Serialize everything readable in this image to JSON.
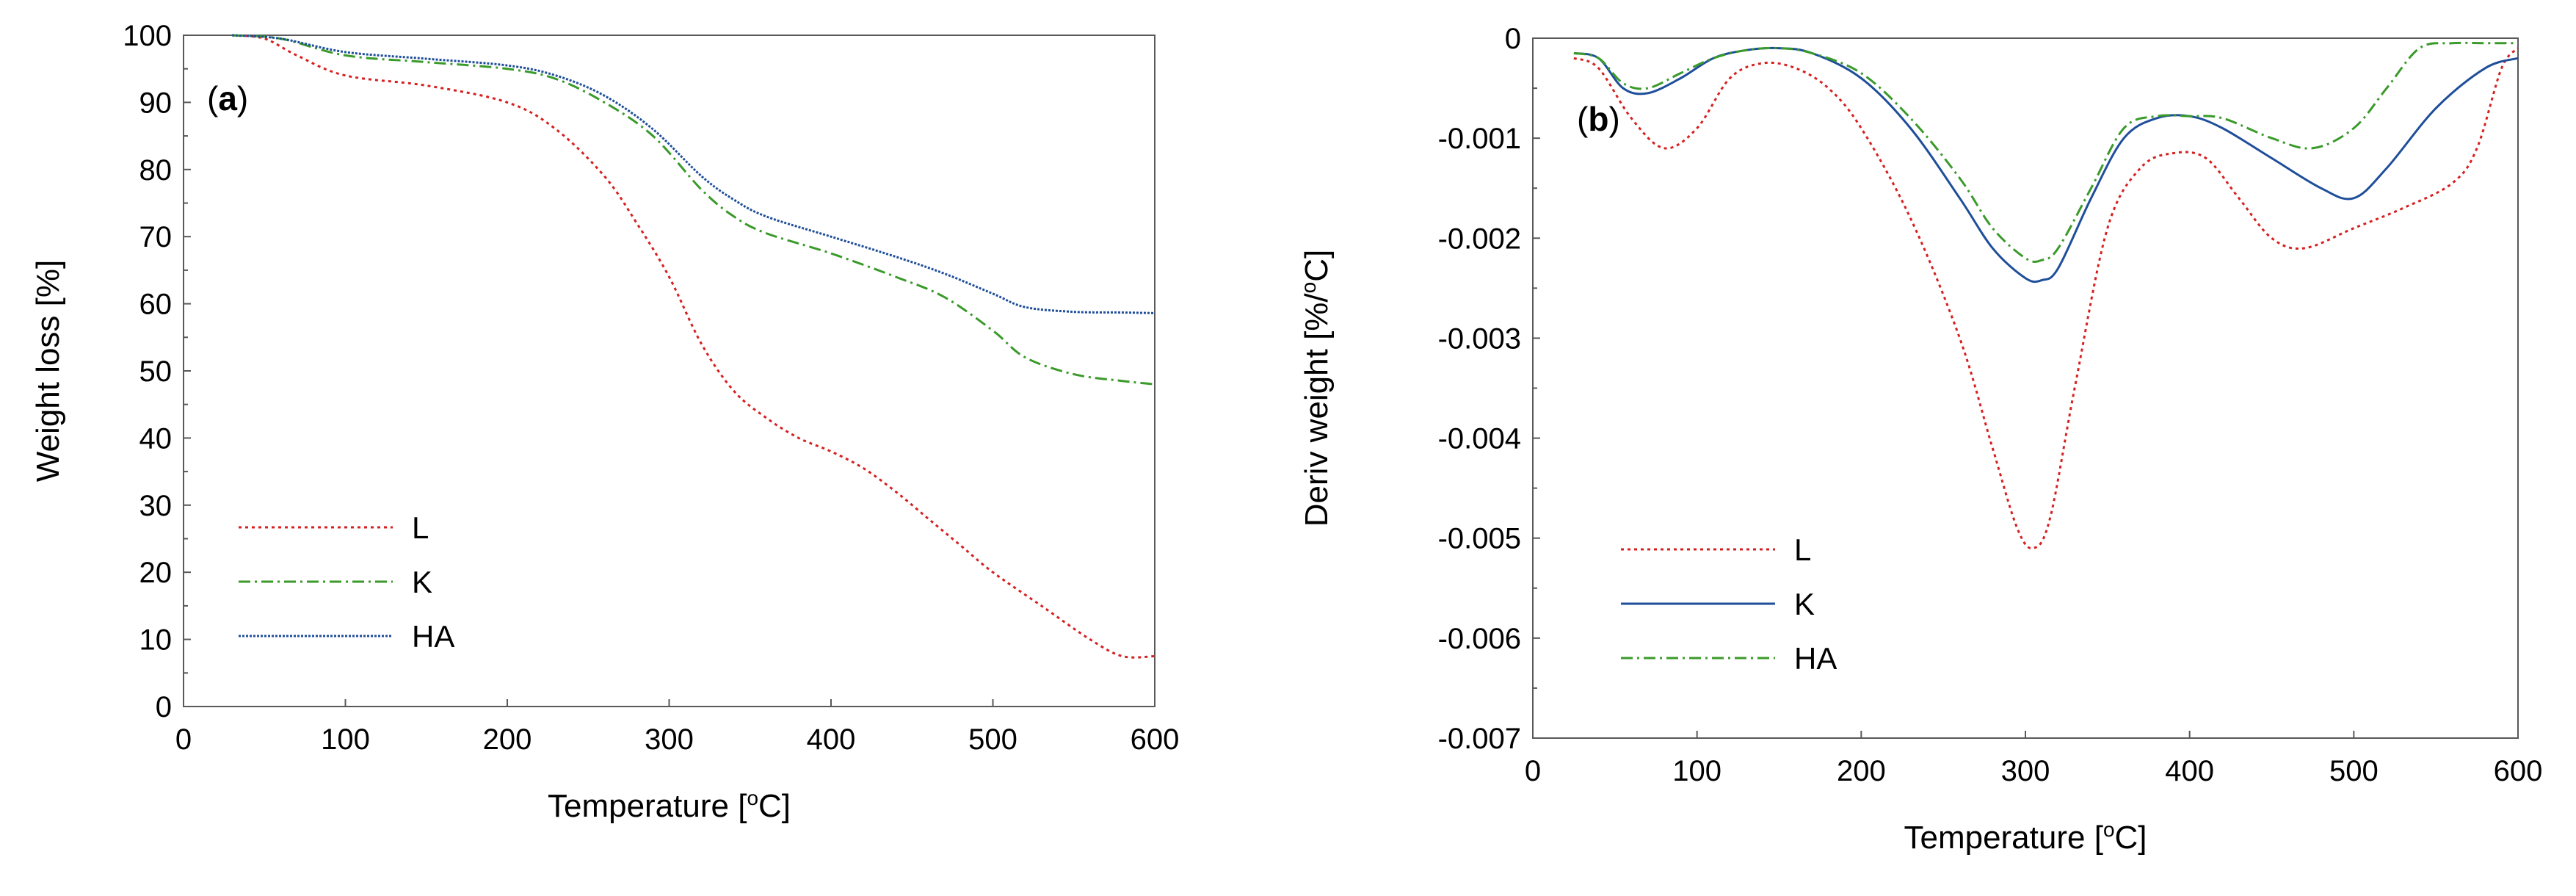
{
  "chart_data": [
    {
      "type": "line",
      "panel": "a",
      "panel_label": {
        "open": "(",
        "letter": "a",
        "close": ")"
      },
      "xlabel": {
        "main": "Temperature [",
        "sup": "o",
        "unit": "C]"
      },
      "ylabel": "Weight loss [%]",
      "xlim": [
        0,
        600
      ],
      "ylim": [
        0,
        100
      ],
      "xticks": [
        0,
        100,
        200,
        300,
        400,
        500,
        600
      ],
      "yticks": [
        0,
        10,
        20,
        30,
        40,
        50,
        60,
        70,
        80,
        90,
        100
      ],
      "legend_position": "lower-left",
      "series": [
        {
          "name": "L",
          "color": "#d62020",
          "dash": "dotted",
          "x": [
            30,
            50,
            70,
            100,
            150,
            200,
            230,
            260,
            280,
            300,
            320,
            340,
            360,
            380,
            400,
            420,
            440,
            460,
            480,
            500,
            530,
            560,
            580,
            600
          ],
          "y": [
            100,
            99.5,
            97,
            94,
            92.5,
            90,
            86,
            79,
            72,
            64,
            54,
            47,
            43,
            40,
            38,
            35.5,
            32,
            28,
            24,
            20,
            15,
            10,
            7.5,
            7.5
          ]
        },
        {
          "name": "K",
          "color": "#3a9a2a",
          "dash": "dashdot",
          "x": [
            30,
            60,
            100,
            150,
            200,
            230,
            260,
            290,
            320,
            340,
            360,
            400,
            440,
            470,
            500,
            520,
            550,
            580,
            600
          ],
          "y": [
            100,
            99.5,
            97,
            96,
            95,
            93.5,
            90,
            85,
            77,
            73,
            70.5,
            67.5,
            64,
            61,
            56,
            52,
            49.5,
            48.5,
            48
          ]
        },
        {
          "name": "HA",
          "color": "#1f4e9a",
          "dash": "dense",
          "x": [
            30,
            60,
            100,
            150,
            200,
            230,
            260,
            290,
            320,
            340,
            360,
            400,
            440,
            470,
            500,
            520,
            550,
            580,
            600
          ],
          "y": [
            100,
            99.5,
            97.5,
            96.5,
            95.5,
            94,
            91,
            86,
            79,
            75.5,
            73,
            70,
            67,
            64.5,
            61.5,
            59.5,
            58.8,
            58.7,
            58.6
          ]
        }
      ]
    },
    {
      "type": "line",
      "panel": "b",
      "panel_label": {
        "open": "(",
        "letter": "b",
        "close": ")"
      },
      "xlabel": {
        "main": "Temperature [",
        "sup": "o",
        "unit": "C]"
      },
      "ylabel": {
        "main": "Deriv weight [%/",
        "sup": "o",
        "unit": "C]"
      },
      "xlim": [
        0,
        600
      ],
      "ylim": [
        -0.007,
        0
      ],
      "xticks": [
        0,
        100,
        200,
        300,
        400,
        500,
        600
      ],
      "xtick_labels": [
        "0",
        "100",
        "200",
        "300",
        "400",
        "500",
        "600"
      ],
      "yticks": [
        0,
        -0.001,
        -0.002,
        -0.003,
        -0.004,
        -0.005,
        -0.006,
        -0.007
      ],
      "ytick_labels": [
        "0",
        "-0.001",
        "-0.002",
        "-0.003",
        "-0.004",
        "-0.005",
        "-0.006",
        "-0.007"
      ],
      "legend_position": "lower-left",
      "series": [
        {
          "name": "L",
          "color": "#d62020",
          "dash": "dotted",
          "x": [
            25,
            40,
            60,
            80,
            100,
            120,
            140,
            160,
            180,
            200,
            230,
            260,
            280,
            295,
            305,
            315,
            330,
            350,
            370,
            390,
            410,
            430,
            450,
            470,
            500,
            530,
            560,
            575,
            590,
            600
          ],
          "y": [
            -0.0002,
            -0.0003,
            -0.0008,
            -0.0011,
            -0.0009,
            -0.0004,
            -0.00025,
            -0.0003,
            -0.0005,
            -0.0009,
            -0.0018,
            -0.003,
            -0.0041,
            -0.0049,
            -0.0051,
            -0.0048,
            -0.0035,
            -0.0019,
            -0.0013,
            -0.00115,
            -0.0012,
            -0.0016,
            -0.002,
            -0.0021,
            -0.0019,
            -0.0017,
            -0.00145,
            -0.0011,
            -0.0003,
            -0.0001
          ]
        },
        {
          "name": "K",
          "color": "#1f4e9a",
          "dash": "solid",
          "x": [
            25,
            40,
            55,
            70,
            90,
            110,
            130,
            150,
            170,
            200,
            230,
            260,
            280,
            300,
            310,
            320,
            340,
            360,
            380,
            400,
            420,
            450,
            480,
            500,
            520,
            550,
            580,
            600
          ],
          "y": [
            -0.00015,
            -0.0002,
            -0.0005,
            -0.00055,
            -0.0004,
            -0.0002,
            -0.00012,
            -0.0001,
            -0.00015,
            -0.0004,
            -0.0009,
            -0.0016,
            -0.0021,
            -0.0024,
            -0.00242,
            -0.0023,
            -0.0016,
            -0.001,
            -0.0008,
            -0.00078,
            -0.0009,
            -0.0012,
            -0.0015,
            -0.0016,
            -0.0013,
            -0.0007,
            -0.0003,
            -0.0002
          ]
        },
        {
          "name": "HA",
          "color": "#3a9a2a",
          "dash": "dashdot",
          "x": [
            25,
            40,
            55,
            70,
            90,
            110,
            130,
            150,
            170,
            200,
            230,
            260,
            280,
            300,
            310,
            320,
            340,
            360,
            380,
            400,
            420,
            450,
            475,
            500,
            520,
            540,
            560,
            580,
            600
          ],
          "y": [
            -0.00015,
            -0.0002,
            -0.00045,
            -0.0005,
            -0.00035,
            -0.0002,
            -0.00012,
            -0.0001,
            -0.00015,
            -0.00035,
            -0.0008,
            -0.0014,
            -0.0019,
            -0.0022,
            -0.00222,
            -0.0021,
            -0.0015,
            -0.0009,
            -0.00078,
            -0.00078,
            -0.0008,
            -0.001,
            -0.0011,
            -0.0009,
            -0.0005,
            -0.0001,
            -5e-05,
            -5e-05,
            -5e-05
          ]
        }
      ]
    }
  ]
}
